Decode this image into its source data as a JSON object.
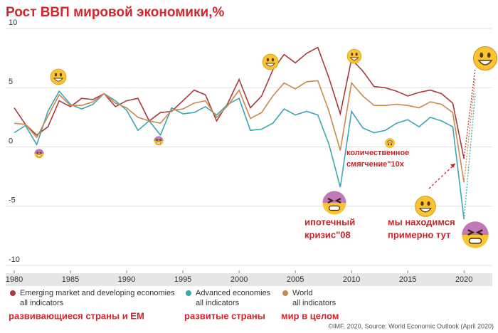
{
  "chart_data": {
    "type": "line",
    "title": "Рост ВВП мировой экономики,%",
    "x": [
      1980,
      1981,
      1982,
      1983,
      1984,
      1985,
      1986,
      1987,
      1988,
      1989,
      1990,
      1991,
      1992,
      1993,
      1994,
      1995,
      1996,
      1997,
      1998,
      1999,
      2000,
      2001,
      2002,
      2003,
      2004,
      2005,
      2006,
      2007,
      2008,
      2009,
      2010,
      2011,
      2012,
      2013,
      2014,
      2015,
      2016,
      2017,
      2018,
      2019,
      2020
    ],
    "forecast_x": 2021,
    "xlim": [
      1980,
      2021
    ],
    "xticks": [
      1980,
      1985,
      1990,
      1995,
      2000,
      2005,
      2010,
      2015,
      2020
    ],
    "ylim": [
      -10,
      10
    ],
    "yticks": [
      -10,
      -5,
      0,
      5,
      10
    ],
    "grid": true,
    "series": [
      {
        "name": "Emerging market and developing economies",
        "sublabel": "all indicators",
        "note": "развивающиеся страны и ЕМ",
        "color": "#a8393c",
        "values": [
          3.3,
          1.9,
          1.0,
          1.7,
          3.9,
          3.4,
          4.1,
          4.0,
          4.5,
          3.4,
          3.9,
          4.1,
          2.2,
          2.9,
          3.0,
          3.9,
          4.8,
          4.4,
          2.2,
          3.7,
          5.7,
          3.3,
          4.3,
          6.5,
          7.8,
          7.1,
          7.9,
          8.4,
          5.8,
          2.8,
          7.4,
          6.4,
          5.1,
          5.0,
          4.7,
          4.3,
          4.6,
          4.8,
          4.5,
          3.7,
          -1.0
        ],
        "forecast": 6.6
      },
      {
        "name": "Advanced economies",
        "sublabel": "all indicators",
        "note": "развитые страны",
        "color": "#3aa7b1",
        "values": [
          1.2,
          1.8,
          0.2,
          3.0,
          4.7,
          3.6,
          3.2,
          3.6,
          4.5,
          3.9,
          3.1,
          1.4,
          2.2,
          1.0,
          3.3,
          2.8,
          2.9,
          3.4,
          2.7,
          3.6,
          4.1,
          1.4,
          1.5,
          2.0,
          3.2,
          2.7,
          3.0,
          2.7,
          0.2,
          -3.4,
          3.0,
          1.6,
          1.2,
          1.4,
          2.0,
          2.3,
          1.7,
          2.5,
          2.2,
          1.7,
          -6.1
        ],
        "forecast": 4.5
      },
      {
        "name": "World",
        "sublabel": "all indicators",
        "note": "мир в целом",
        "color": "#c98a4b",
        "values": [
          2.0,
          1.9,
          0.8,
          2.6,
          4.4,
          3.5,
          3.5,
          3.8,
          4.5,
          3.7,
          3.3,
          2.5,
          2.2,
          2.0,
          3.1,
          3.2,
          3.7,
          3.9,
          2.5,
          3.5,
          4.8,
          2.4,
          2.9,
          4.3,
          5.4,
          4.9,
          5.5,
          5.6,
          3.0,
          -0.3,
          5.4,
          4.3,
          3.5,
          3.5,
          3.6,
          3.5,
          3.3,
          3.8,
          3.6,
          2.9,
          -3.0
        ],
        "forecast": 5.8
      }
    ],
    "annotations": [
      {
        "lines": [
          "количественное",
          "смягчение\"10x"
        ]
      },
      {
        "lines": [
          "ипотечный",
          "кризис\"08"
        ]
      },
      {
        "lines": [
          "мы находимся",
          "примерно тут"
        ]
      }
    ],
    "source": "©IMF, 2020, Source: World Economic Outlook (April 2020)"
  }
}
